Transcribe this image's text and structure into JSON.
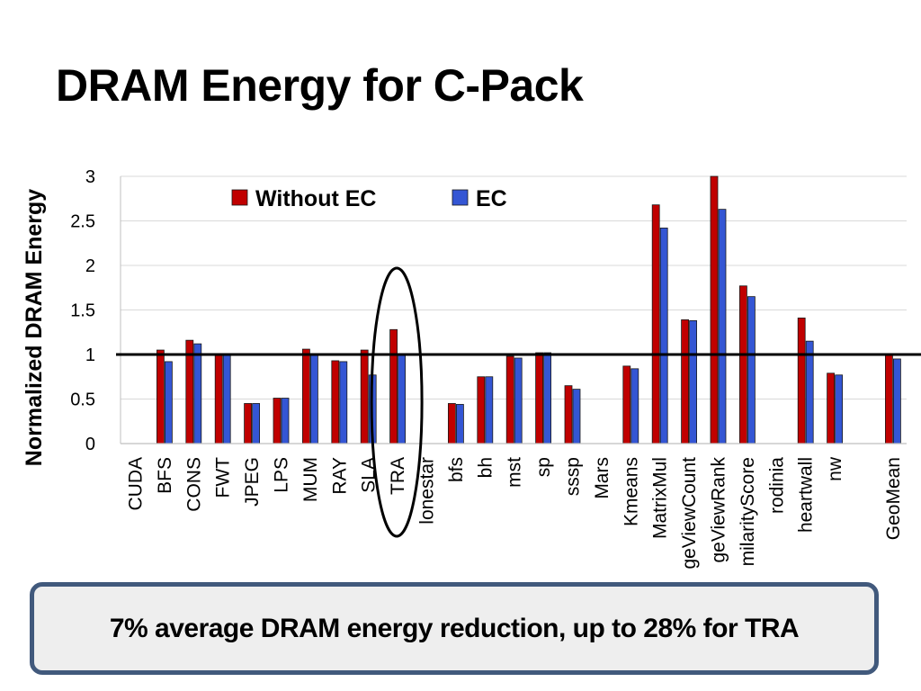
{
  "slide": {
    "title": "DRAM Energy for C-Pack",
    "callout": "7% average DRAM energy reduction, up to 28% for TRA"
  },
  "chart_data": {
    "type": "bar",
    "title": "DRAM Energy for C-Pack",
    "xlabel": "",
    "ylabel": "Normalized DRAM Energy",
    "ylim": [
      0,
      3
    ],
    "yticks": [
      0,
      0.5,
      1,
      1.5,
      2,
      2.5,
      3
    ],
    "ytick_labels": [
      "0",
      "0.5",
      "1",
      "1.5",
      "2",
      "2.5",
      "3"
    ],
    "grid": true,
    "reference_line": 1,
    "highlighted_category": "TRA",
    "legend_position": "top-left",
    "categories": [
      "CUDA",
      "BFS",
      "CONS",
      "FWT",
      "JPEG",
      "LPS",
      "MUM",
      "RAY",
      "SLA",
      "TRA",
      "lonestar",
      "bfs",
      "bh",
      "mst",
      "sp",
      "sssp",
      "Mars",
      "Kmeans",
      "MatrixMul",
      "PageViewCount",
      "PageViewRank",
      "SimilarityScore",
      "rodinia",
      "heartwall",
      "nw",
      "",
      "GeoMean"
    ],
    "category_labels": [
      "CUDA",
      "BFS",
      "CONS",
      "FWT",
      "JPEG",
      "LPS",
      "MUM",
      "RAY",
      "SLA",
      "TRA",
      "lonestar",
      "bfs",
      "bh",
      "mst",
      "sp",
      "sssp",
      "Mars",
      "Kmeans",
      "MatrixMul",
      "geViewCount",
      "geViewRank",
      "milarityScore",
      "rodinia",
      "heartwall",
      "nw",
      "",
      "GeoMean"
    ],
    "series": [
      {
        "name": "Without EC",
        "color": "#c00000",
        "values": [
          null,
          1.05,
          1.16,
          1.01,
          0.45,
          0.51,
          1.06,
          0.93,
          1.05,
          1.28,
          null,
          0.45,
          0.75,
          0.98,
          1.02,
          0.65,
          null,
          0.87,
          2.68,
          1.39,
          3.0,
          1.77,
          null,
          1.41,
          0.79,
          null,
          1.01
        ]
      },
      {
        "name": "EC",
        "color": "#3456d4",
        "values": [
          null,
          0.92,
          1.12,
          1.0,
          0.45,
          0.51,
          1.01,
          0.92,
          0.77,
          1.0,
          null,
          0.44,
          0.75,
          0.96,
          1.02,
          0.61,
          null,
          0.84,
          2.42,
          1.38,
          2.63,
          1.65,
          null,
          1.15,
          0.77,
          null,
          0.95
        ]
      }
    ]
  }
}
